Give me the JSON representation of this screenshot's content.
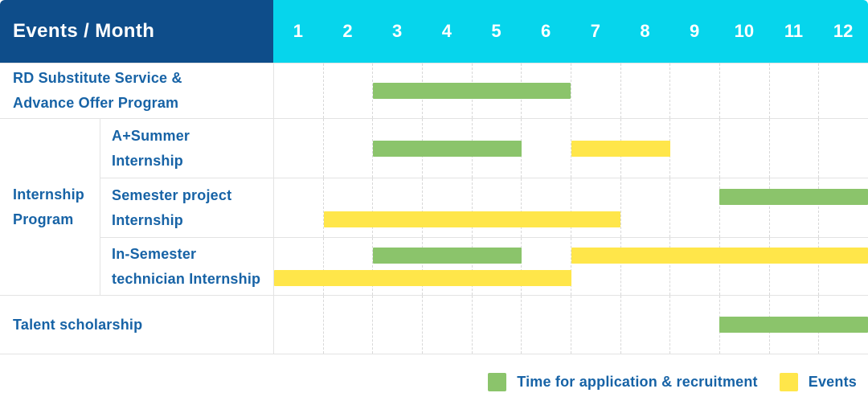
{
  "colors": {
    "header_bg": "#0e4d8a",
    "header_text": "#ffffff",
    "months_bg": "#06d5ec",
    "label_text": "#1763a6",
    "green": "#8bc46b",
    "yellow": "#ffe64a",
    "grid_line": "#e3e3e3",
    "dash_line": "#d8d8d8"
  },
  "header": {
    "title": "Events / Month",
    "months": [
      "1",
      "2",
      "3",
      "4",
      "5",
      "6",
      "7",
      "8",
      "9",
      "10",
      "11",
      "12"
    ]
  },
  "chart_data": {
    "type": "bar",
    "subtype": "gantt",
    "title": "Events / Month",
    "x_axis_label": "Month",
    "x_ticks": [
      1,
      2,
      3,
      4,
      5,
      6,
      7,
      8,
      9,
      10,
      11,
      12
    ],
    "x_range": [
      1,
      12
    ],
    "grid": "dashed-vertical",
    "legend_position": "bottom-right",
    "legend": [
      {
        "kind": "application",
        "label": "Time for application & recruitment",
        "color": "#8bc46b"
      },
      {
        "kind": "event",
        "label": "Events",
        "color": "#ffe64a"
      }
    ],
    "rows": [
      {
        "group": null,
        "label": "RD Substitute Service & Advance Offer Program",
        "label_lines": [
          "RD Substitute Service &",
          "Advance Offer Program"
        ],
        "bars": [
          {
            "kind": "application",
            "start_month": 3,
            "end_month": 6,
            "line": "center"
          }
        ]
      },
      {
        "group": "Internship Program",
        "group_lines": [
          "Internship",
          "Program"
        ],
        "label": "A+Summer Internship",
        "label_lines": [
          "A+Summer",
          "Internship"
        ],
        "bars": [
          {
            "kind": "application",
            "start_month": 3,
            "end_month": 5,
            "line": "center"
          },
          {
            "kind": "event",
            "start_month": 7,
            "end_month": 8,
            "line": "center"
          }
        ]
      },
      {
        "group": "Internship Program",
        "label": "Semester project Internship",
        "label_lines": [
          "Semester project",
          "Internship"
        ],
        "bars": [
          {
            "kind": "application",
            "start_month": 10,
            "end_month": 12,
            "line": "top"
          },
          {
            "kind": "event",
            "start_month": 2,
            "end_month": 7,
            "line": "bottom"
          }
        ]
      },
      {
        "group": "Internship Program",
        "label": "In-Semester technician Internship",
        "label_lines": [
          "In-Semester",
          "technician Internship"
        ],
        "bars": [
          {
            "kind": "application",
            "start_month": 3,
            "end_month": 5,
            "line": "top"
          },
          {
            "kind": "event",
            "start_month": 7,
            "end_month": 12,
            "line": "top"
          },
          {
            "kind": "event",
            "start_month": 1,
            "end_month": 6,
            "line": "bottom"
          }
        ]
      },
      {
        "group": null,
        "label": "Talent scholarship",
        "label_lines": [
          "Talent scholarship"
        ],
        "bars": [
          {
            "kind": "application",
            "start_month": 10,
            "end_month": 12,
            "line": "center"
          }
        ]
      }
    ]
  }
}
